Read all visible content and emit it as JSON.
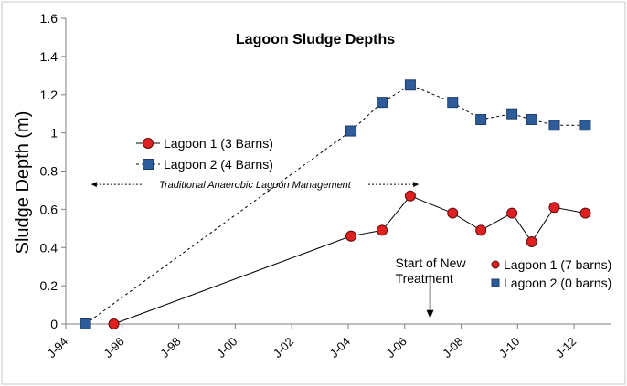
{
  "chart_data": {
    "type": "line",
    "title": "Lagoon Sludge Depths",
    "ylabel": "Sludge Depth (m)",
    "xlabel": "",
    "ylim": [
      0,
      1.6
    ],
    "xlim": [
      1994,
      2013
    ],
    "yticks": [
      0,
      0.2,
      0.4,
      0.6,
      0.8,
      1,
      1.2,
      1.4,
      1.6
    ],
    "ytick_labels": [
      "0",
      "0.2",
      "0.4",
      "0.6",
      "0.8",
      "1",
      "1.2",
      "1.4",
      "1.6"
    ],
    "xticks": [
      1994,
      1996,
      1998,
      2000,
      2002,
      2004,
      2006,
      2008,
      2010,
      2012
    ],
    "xtick_labels": [
      "J-94",
      "J-96",
      "J-98",
      "J-00",
      "J-02",
      "J-04",
      "J-06",
      "J-08",
      "J-10",
      "J-12"
    ],
    "grid": false,
    "series": [
      {
        "name": "Lagoon 1 (3 Barns)",
        "marker": "circle",
        "color": "#e02020",
        "line_style": "solid",
        "x": [
          1995.7,
          2004.1
        ],
        "values": [
          0.0,
          0.46
        ]
      },
      {
        "name": "Lagoon 2 (4 Barns)",
        "marker": "square",
        "color": "#2e5b9a",
        "line_style": "dashed",
        "x": [
          1994.7,
          2004.1
        ],
        "values": [
          0.0,
          1.01
        ]
      },
      {
        "name": "Lagoon 1 (7 barns)",
        "marker": "circle",
        "color": "#e02020",
        "line_style": "solid",
        "x": [
          2004.1,
          2005.2,
          2006.2,
          2007.7,
          2008.7,
          2009.8,
          2010.5,
          2011.3,
          2012.4
        ],
        "values": [
          0.46,
          0.49,
          0.67,
          0.58,
          0.49,
          0.58,
          0.43,
          0.61,
          0.58
        ]
      },
      {
        "name": "Lagoon 2 (0 barns)",
        "marker": "square",
        "color": "#2e5b9a",
        "line_style": "dashed",
        "x": [
          2004.1,
          2005.2,
          2006.2,
          2007.7,
          2008.7,
          2009.8,
          2010.5,
          2011.3,
          2012.4
        ],
        "values": [
          1.01,
          1.16,
          1.25,
          1.16,
          1.07,
          1.1,
          1.07,
          1.04,
          1.04
        ]
      }
    ],
    "legend_top": [
      {
        "label": "Lagoon 1 (3 Barns)",
        "marker": "circle",
        "line_style": "solid"
      },
      {
        "label": "Lagoon 2 (4 Barns)",
        "marker": "square",
        "line_style": "dashed"
      }
    ],
    "legend_bottom": [
      {
        "label": "Lagoon 1 (7 barns)",
        "marker": "circle"
      },
      {
        "label": "Lagoon 2 (0 barns)",
        "marker": "square"
      }
    ],
    "annotations": {
      "management_label": "Traditional Anaerobic Lagoon Management",
      "management_range": [
        1994.9,
        2006.5
      ],
      "management_y": 0.73,
      "treatment_label_line1": "Start of New",
      "treatment_label_line2": "Treatment",
      "treatment_x": 2006.9,
      "treatment_arrow_from_y": 0.26,
      "treatment_arrow_to_y": 0.03
    },
    "colors": {
      "lagoon1": "#e02020",
      "lagoon2": "#2e5b9a",
      "axis": "#7f7f7f",
      "frame": "#c9c9c9"
    }
  }
}
